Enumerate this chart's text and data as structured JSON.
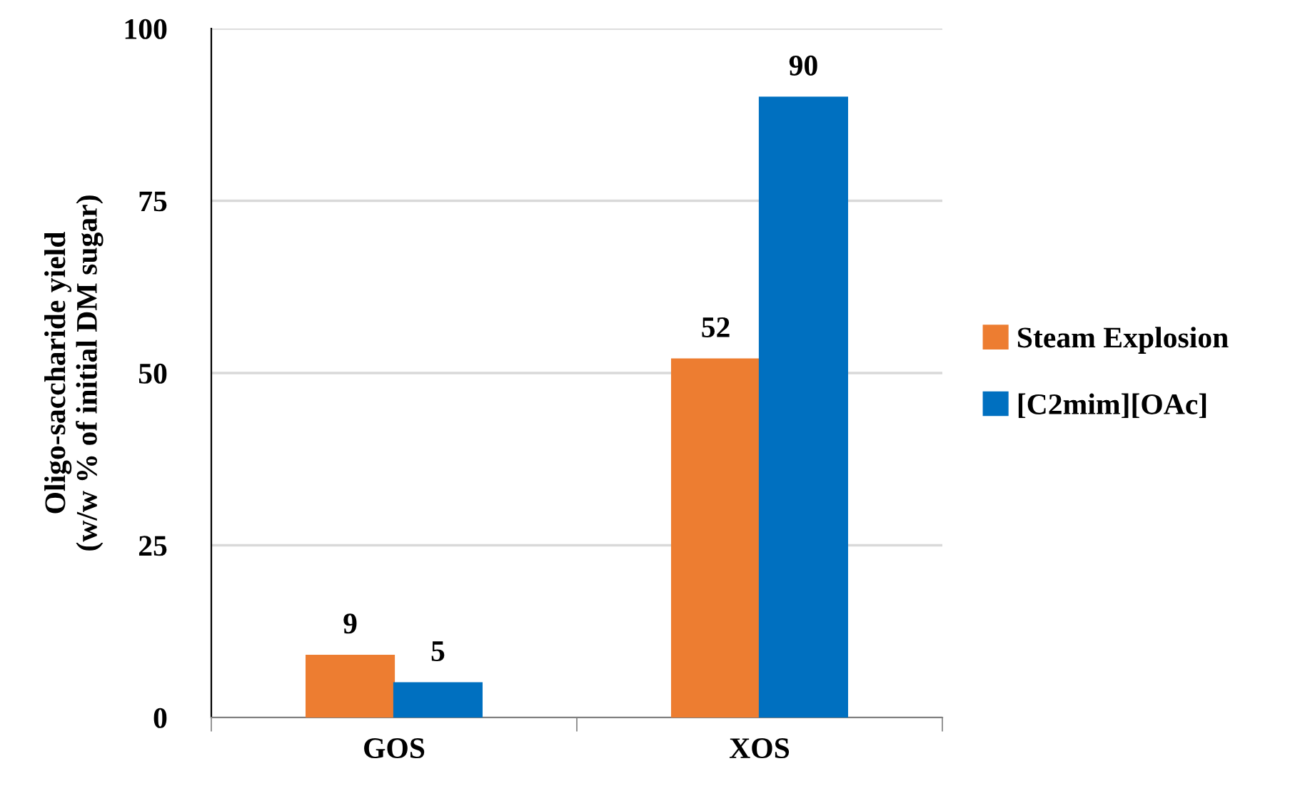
{
  "chart_data": {
    "type": "bar",
    "ylabel": "Oligo-saccharide yield\n(w/w % of initial DM sugar)",
    "categories": [
      "GOS",
      "XOS"
    ],
    "series": [
      {
        "name": "Steam Explosion",
        "color": "#ed7d31",
        "values": [
          9,
          52
        ]
      },
      {
        "name": "[C2mim][OAc]",
        "color": "#0070c0",
        "values": [
          5,
          90
        ]
      }
    ],
    "ylim": [
      0,
      100
    ],
    "yticks": [
      0,
      25,
      50,
      75,
      100
    ],
    "grid": "y",
    "legend": "right",
    "data_labels": true
  }
}
